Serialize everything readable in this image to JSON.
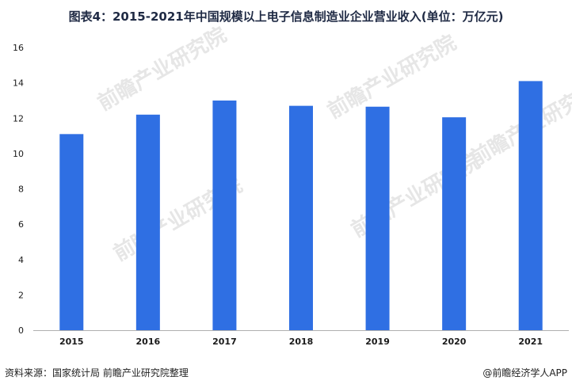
{
  "title": "图表4：2015-2021年中国规模以上电子信息制造业企业营业收入(单位：万亿元)",
  "footer": {
    "source": "资料来源：国家统计局 前瞻产业研究院整理",
    "brand": "@前瞻经济学人APP"
  },
  "watermark": {
    "text": "前瞻产业研究院"
  },
  "colors": {
    "bar": "#2f6fe3",
    "axis": "#b0b0b0",
    "tick_text": "#1a1a1a"
  },
  "chart_data": {
    "type": "bar",
    "categories": [
      "2015",
      "2016",
      "2017",
      "2018",
      "2019",
      "2020",
      "2021"
    ],
    "values": [
      11.1,
      12.2,
      13.0,
      12.7,
      12.65,
      12.05,
      14.1
    ],
    "ylim": [
      0,
      16
    ],
    "yticks": [
      "0",
      "2",
      "4",
      "6",
      "8",
      "10",
      "12",
      "14",
      "16"
    ],
    "grid": false,
    "legend": "none"
  }
}
